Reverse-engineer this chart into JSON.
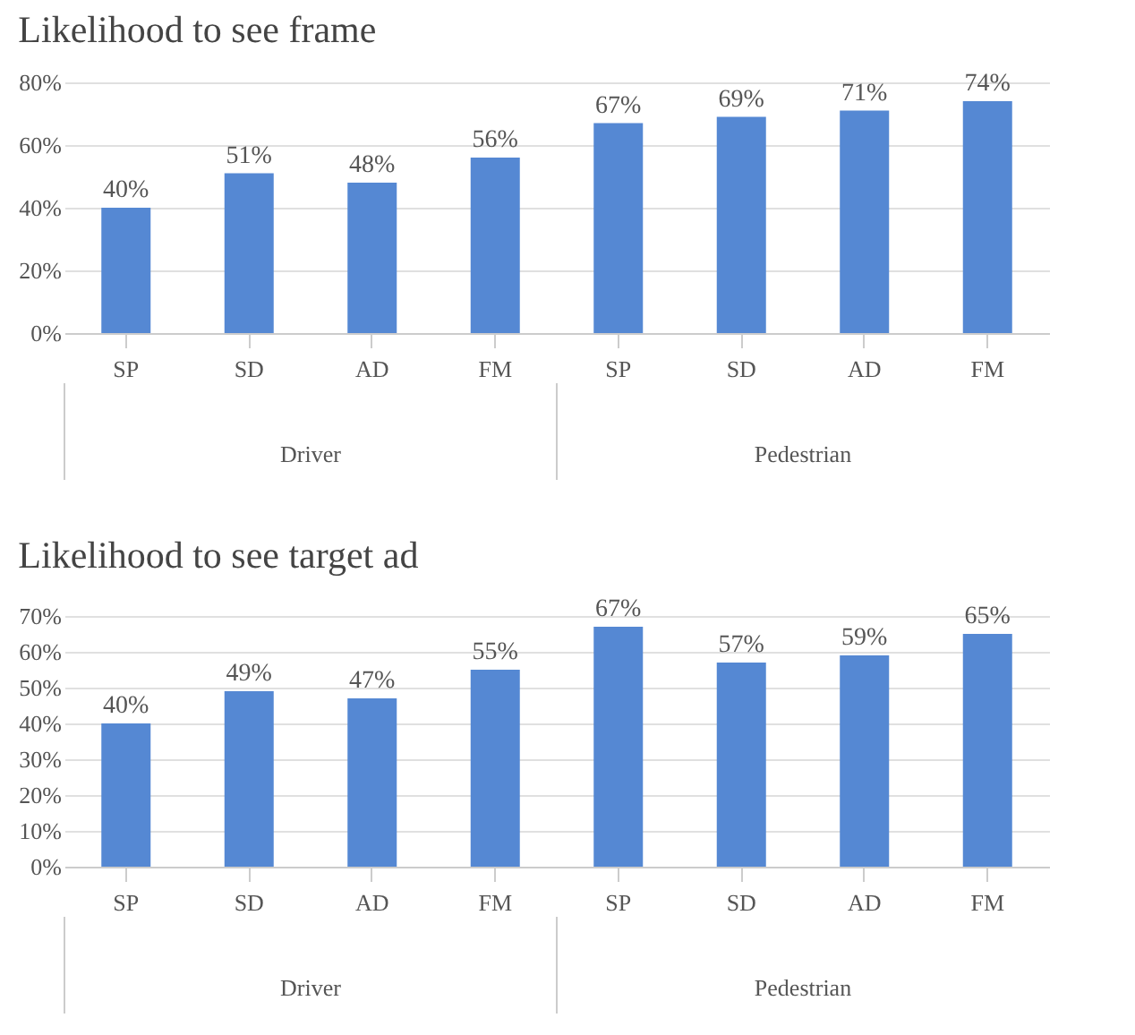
{
  "chart_data": [
    {
      "type": "bar",
      "title": "Likelihood to see frame",
      "categories": [
        "SP",
        "SD",
        "AD",
        "FM",
        "SP",
        "SD",
        "AD",
        "FM"
      ],
      "values": [
        40,
        51,
        48,
        56,
        67,
        69,
        71,
        74
      ],
      "value_labels": [
        "40%",
        "51%",
        "48%",
        "56%",
        "67%",
        "69%",
        "71%",
        "74%"
      ],
      "color": "#5588d3",
      "ylim": [
        0,
        80
      ],
      "yticks": [
        {
          "value": 0,
          "label": "0%"
        },
        {
          "value": 20,
          "label": "20%"
        },
        {
          "value": 40,
          "label": "40%"
        },
        {
          "value": 60,
          "label": "60%"
        },
        {
          "value": 80,
          "label": "80%"
        }
      ],
      "grid": "y",
      "annotations": [
        "Driver",
        "Pedestrian"
      ]
    },
    {
      "type": "bar",
      "title": "Likelihood to see target ad",
      "categories": [
        "SP",
        "SD",
        "AD",
        "FM",
        "SP",
        "SD",
        "AD",
        "FM"
      ],
      "values": [
        40,
        49,
        47,
        55,
        67,
        57,
        59,
        65
      ],
      "value_labels": [
        "40%",
        "49%",
        "47%",
        "55%",
        "67%",
        "57%",
        "59%",
        "65%"
      ],
      "color": "#5588d3",
      "ylim": [
        0,
        70
      ],
      "yticks": [
        {
          "value": 0,
          "label": "0%"
        },
        {
          "value": 10,
          "label": "10%"
        },
        {
          "value": 20,
          "label": "20%"
        },
        {
          "value": 30,
          "label": "30%"
        },
        {
          "value": 40,
          "label": "40%"
        },
        {
          "value": 50,
          "label": "50%"
        },
        {
          "value": 60,
          "label": "60%"
        },
        {
          "value": 70,
          "label": "70%"
        }
      ],
      "grid": "y",
      "annotations": [
        "Driver",
        "Pedestrian"
      ]
    }
  ]
}
